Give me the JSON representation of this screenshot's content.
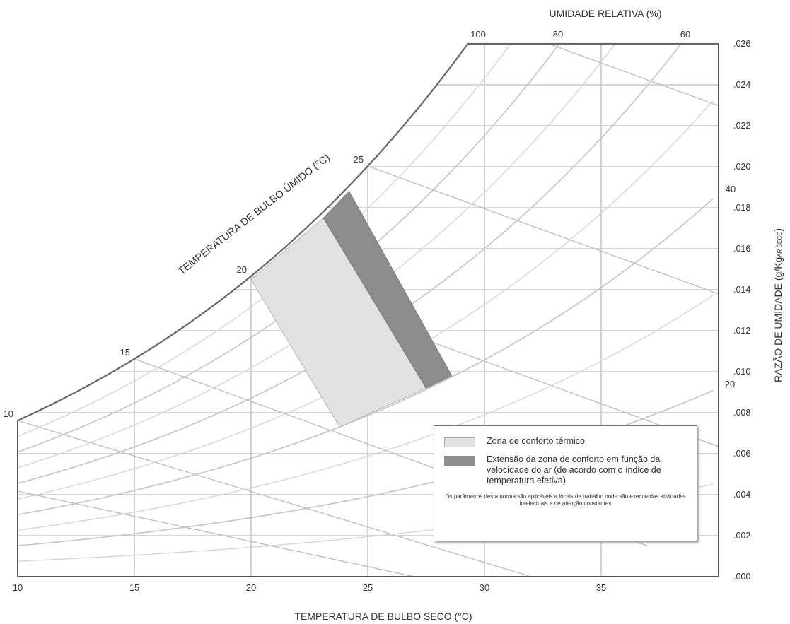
{
  "chart_data": {
    "type": "psychrometric",
    "top_title": "UMIDADE RELATIVA (%)",
    "xlabel": "TEMPERATURA DE BULBO SECO (°C)",
    "ylabel": "RAZÃO DE UMIDADE (g/Kg",
    "ylabel_sub": "AR SECO",
    "ylabel_close": ")",
    "curve_label": "TEMPERATURA DE BULBO ÚMIDO (°C)",
    "xlim": [
      10,
      40
    ],
    "ylim": [
      0,
      0.026
    ],
    "x_ticks": [
      10,
      15,
      20,
      25,
      30,
      35
    ],
    "x_tick_labels": [
      "10",
      "15",
      "20",
      "25",
      "30",
      "35"
    ],
    "y_ticks": [
      0.0,
      0.002,
      0.004,
      0.006,
      0.008,
      0.01,
      0.012,
      0.014,
      0.016,
      0.018,
      0.02,
      0.022,
      0.024,
      0.026
    ],
    "y_tick_labels": [
      ".000",
      ".002",
      ".004",
      ".006",
      ".008",
      ".010",
      ".012",
      ".014",
      ".016",
      ".018",
      ".020",
      ".022",
      ".024",
      ".026"
    ],
    "rh_curves": [
      {
        "label": "100",
        "rh": 100
      },
      {
        "label": "80",
        "rh": 80
      },
      {
        "label": "60",
        "rh": 60
      },
      {
        "label": "40",
        "rh": 40
      },
      {
        "label": "20",
        "rh": 20
      }
    ],
    "rh_minor": [
      90,
      70,
      50,
      30,
      10
    ],
    "wet_bulb_labels": [
      {
        "label": "10",
        "t": 10
      },
      {
        "label": "15",
        "t": 15
      },
      {
        "label": "20",
        "t": 20
      },
      {
        "label": "25",
        "t": 25
      }
    ],
    "wet_bulb_lines": [
      5,
      10,
      15,
      20,
      25,
      30
    ],
    "comfort_zone": [
      [
        20,
        0.0145
      ],
      [
        23.1,
        0.0175
      ],
      [
        27.5,
        0.0092
      ],
      [
        23.8,
        0.0073
      ]
    ],
    "extension_zone": [
      [
        23.1,
        0.0175
      ],
      [
        24.2,
        0.0188
      ],
      [
        28.6,
        0.0098
      ],
      [
        27.5,
        0.0092
      ]
    ],
    "colors": {
      "comfort": "#e2e2e2",
      "extension": "#8d8d8d",
      "grid": "#c8c8c8",
      "curve": "#666666"
    }
  },
  "legend": {
    "comfort_label": "Zona de conforto térmico",
    "extension_label": "Extensão da zona de conforto em função da velocidade do ar (de acordo com o índice de temperatura efetiva)",
    "note": "Os parâmetros desta norma são aplicáveis a locais de trabalho onde são executadas atividades intelectuais e de atenção constantes"
  }
}
